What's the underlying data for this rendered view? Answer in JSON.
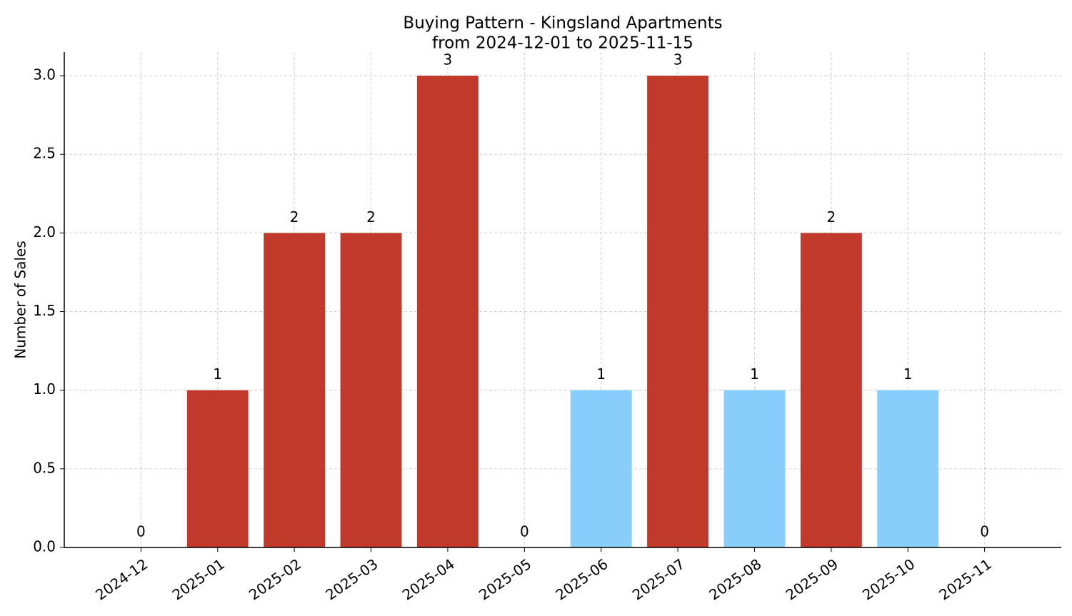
{
  "chart_data": {
    "type": "bar",
    "title": "Buying Pattern - Kingsland Apartments",
    "subtitle": "from 2024-12-01 to 2025-11-15",
    "y_label": "Number of Sales",
    "categories": [
      "2024-12",
      "2025-01",
      "2025-02",
      "2025-03",
      "2025-04",
      "2025-05",
      "2025-06",
      "2025-07",
      "2025-08",
      "2025-09",
      "2025-10",
      "2025-11"
    ],
    "values": [
      0,
      1,
      2,
      2,
      3,
      0,
      1,
      3,
      1,
      2,
      1,
      0
    ],
    "colors": [
      "#c0392b",
      "#c0392b",
      "#c0392b",
      "#c0392b",
      "#c0392b",
      "#c0392b",
      "#87cefa",
      "#c0392b",
      "#87cefa",
      "#c0392b",
      "#87cefa",
      "#c0392b"
    ],
    "ylim": [
      0,
      3.15
    ],
    "yticks": [
      {
        "value": 0,
        "label": "0.0"
      },
      {
        "value": 0.5,
        "label": "0.5"
      },
      {
        "value": 1,
        "label": "1.0"
      },
      {
        "value": 1.5,
        "label": "1.5"
      },
      {
        "value": 2,
        "label": "2.0"
      },
      {
        "value": 2.5,
        "label": "2.5"
      },
      {
        "value": 3,
        "label": "3.0"
      }
    ],
    "grid": true
  }
}
